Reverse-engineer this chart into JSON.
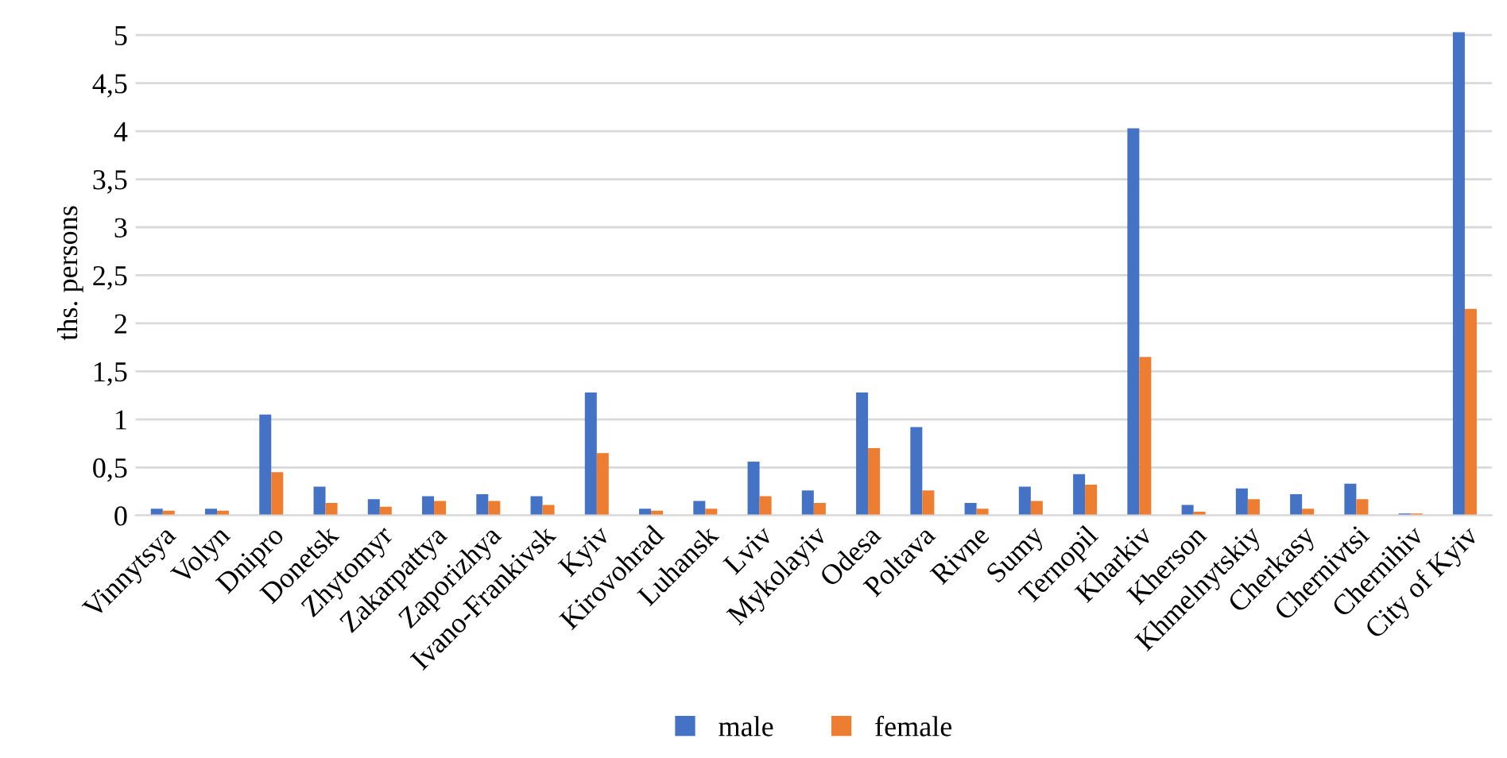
{
  "chart_data": {
    "type": "bar",
    "ylabel": "ths. persons",
    "categories": [
      "Vinnytsya",
      "Volyn",
      "Dnipro",
      "Donetsk",
      "Zhytomyr",
      "Zakarpattya",
      "Zaporizhya",
      "Ivano-Frankivsk",
      "Kyiv",
      "Kirovohrad",
      "Luhansk",
      "Lviv",
      "Mykolayiv",
      "Odesa",
      "Poltava",
      "Rivne",
      "Sumy",
      "Ternopil",
      "Kharkiv",
      "Kherson",
      "Khmelnytskiy",
      "Cherkasy",
      "Chernivtsi",
      "Chernihiv",
      "City of Kyiv"
    ],
    "series": [
      {
        "name": "male",
        "color": "#4472c4",
        "values": [
          0.07,
          0.07,
          1.05,
          0.3,
          0.17,
          0.2,
          0.22,
          0.2,
          1.28,
          0.07,
          0.15,
          0.56,
          0.26,
          1.28,
          0.92,
          0.13,
          0.3,
          0.43,
          4.03,
          0.11,
          0.28,
          0.22,
          0.33,
          0.02,
          5.03
        ]
      },
      {
        "name": "female",
        "color": "#ed7d31",
        "values": [
          0.05,
          0.05,
          0.45,
          0.13,
          0.09,
          0.15,
          0.15,
          0.11,
          0.65,
          0.05,
          0.07,
          0.2,
          0.13,
          0.7,
          0.26,
          0.07,
          0.15,
          0.32,
          1.65,
          0.04,
          0.17,
          0.07,
          0.17,
          0.02,
          2.15
        ]
      }
    ],
    "ylim": [
      0,
      5.05
    ],
    "yticks": [
      0,
      {
        "value": 0.5,
        "label": "0,5"
      },
      1,
      {
        "value": 1.5,
        "label": "1,5"
      },
      2,
      {
        "value": 2.5,
        "label": "2,5"
      },
      3,
      {
        "value": 3.5,
        "label": "3,5"
      },
      4,
      {
        "value": 4.5,
        "label": "4,5"
      },
      5
    ],
    "grid": "y",
    "legend": "bottom"
  }
}
